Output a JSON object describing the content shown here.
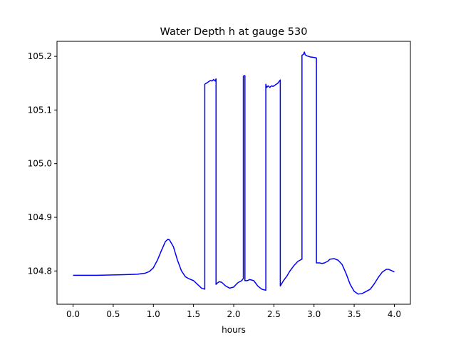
{
  "chart_data": {
    "type": "line",
    "title": "Water Depth h at gauge 530",
    "xlabel": "hours",
    "ylabel": "",
    "xlim": [
      -0.2,
      4.2
    ],
    "ylim": [
      104.738,
      105.228
    ],
    "xticks": [
      {
        "value": 0.0,
        "label": "0.0"
      },
      {
        "value": 0.5,
        "label": "0.5"
      },
      {
        "value": 1.0,
        "label": "1.0"
      },
      {
        "value": 1.5,
        "label": "1.5"
      },
      {
        "value": 2.0,
        "label": "2.0"
      },
      {
        "value": 2.5,
        "label": "2.5"
      },
      {
        "value": 3.0,
        "label": "3.0"
      },
      {
        "value": 3.5,
        "label": "3.5"
      },
      {
        "value": 4.0,
        "label": "4.0"
      }
    ],
    "yticks": [
      {
        "value": 104.8,
        "label": "104.8"
      },
      {
        "value": 104.9,
        "label": "104.9"
      },
      {
        "value": 105.0,
        "label": "105.0"
      },
      {
        "value": 105.1,
        "label": "105.1"
      },
      {
        "value": 105.2,
        "label": "105.2"
      }
    ],
    "grid": false,
    "legend": "none",
    "series": [
      {
        "color": "#0000ff",
        "x": [
          0.0,
          0.3,
          0.6,
          0.8,
          0.9,
          0.95,
          1.0,
          1.05,
          1.1,
          1.15,
          1.18,
          1.2,
          1.25,
          1.3,
          1.35,
          1.4,
          1.45,
          1.5,
          1.55,
          1.6,
          1.64,
          1.64,
          1.66,
          1.69,
          1.71,
          1.73,
          1.75,
          1.77,
          1.78,
          1.78,
          1.8,
          1.82,
          1.85,
          1.9,
          1.95,
          2.0,
          2.05,
          2.1,
          2.12,
          2.12,
          2.13,
          2.14,
          2.14,
          2.17,
          2.2,
          2.25,
          2.3,
          2.35,
          2.4,
          2.4,
          2.41,
          2.43,
          2.45,
          2.47,
          2.49,
          2.51,
          2.53,
          2.55,
          2.57,
          2.58,
          2.58,
          2.62,
          2.66,
          2.7,
          2.75,
          2.8,
          2.85,
          2.85,
          2.87,
          2.88,
          2.89,
          2.91,
          2.95,
          3.0,
          3.03,
          3.03,
          3.07,
          3.1,
          3.13,
          3.17,
          3.2,
          3.25,
          3.3,
          3.35,
          3.4,
          3.45,
          3.5,
          3.55,
          3.6,
          3.65,
          3.7,
          3.75,
          3.8,
          3.85,
          3.9,
          3.93,
          3.96,
          3.99,
          4.0
        ],
        "y": [
          104.792,
          104.792,
          104.793,
          104.794,
          104.796,
          104.799,
          104.806,
          104.82,
          104.838,
          104.855,
          104.859,
          104.858,
          104.845,
          104.82,
          104.8,
          104.789,
          104.785,
          104.782,
          104.775,
          104.768,
          104.766,
          105.148,
          105.15,
          105.153,
          105.155,
          105.154,
          105.157,
          105.154,
          105.158,
          104.775,
          104.778,
          104.78,
          104.779,
          104.772,
          104.768,
          104.77,
          104.778,
          104.782,
          104.786,
          105.163,
          105.164,
          105.164,
          104.782,
          104.782,
          104.784,
          104.782,
          104.772,
          104.766,
          104.764,
          105.148,
          105.142,
          105.145,
          105.142,
          105.145,
          105.144,
          105.146,
          105.148,
          105.15,
          105.154,
          105.156,
          104.772,
          104.782,
          104.79,
          104.8,
          104.81,
          104.818,
          104.822,
          105.202,
          105.204,
          105.208,
          105.203,
          105.201,
          105.199,
          105.198,
          105.197,
          104.815,
          104.815,
          104.814,
          104.815,
          104.818,
          104.822,
          104.823,
          104.82,
          104.812,
          104.795,
          104.775,
          104.762,
          104.757,
          104.758,
          104.762,
          104.766,
          104.776,
          104.788,
          104.798,
          104.803,
          104.803,
          104.801,
          104.799,
          104.798
        ]
      }
    ]
  }
}
